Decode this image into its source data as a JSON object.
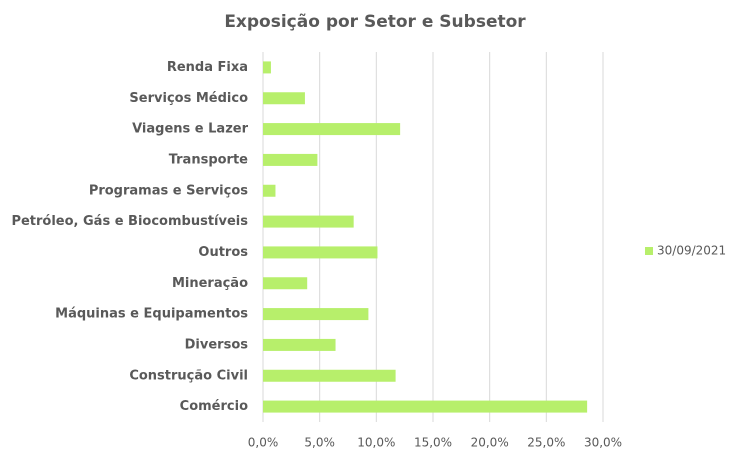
{
  "chart_data": {
    "type": "bar",
    "orientation": "horizontal",
    "title": "Exposição por Setor e Subsetor",
    "categories": [
      "Renda Fixa",
      "Serviços Médico",
      "Viagens e Lazer",
      "Transporte",
      "Programas e Serviços",
      "Petróleo, Gás e Biocombustíveis",
      "Outros",
      "Mineração",
      "Máquinas e Equipamentos",
      "Diversos",
      "Construção Civil",
      "Comércio"
    ],
    "series": [
      {
        "name": "30/09/2021",
        "color": "#b7ef6b",
        "values": [
          0.7,
          3.7,
          12.1,
          4.8,
          1.1,
          8.0,
          10.1,
          3.9,
          9.3,
          6.4,
          11.7,
          28.6
        ]
      }
    ],
    "xlim": [
      0,
      30
    ],
    "xticks": [
      {
        "value": 0,
        "label": "0,0%"
      },
      {
        "value": 5,
        "label": "5,0%"
      },
      {
        "value": 10,
        "label": "10,0%"
      },
      {
        "value": 15,
        "label": "15,0%"
      },
      {
        "value": 20,
        "label": "20,0%"
      },
      {
        "value": 25,
        "label": "25,0%"
      },
      {
        "value": 30,
        "label": "30,0%"
      }
    ],
    "grid": true,
    "legend": "right"
  }
}
